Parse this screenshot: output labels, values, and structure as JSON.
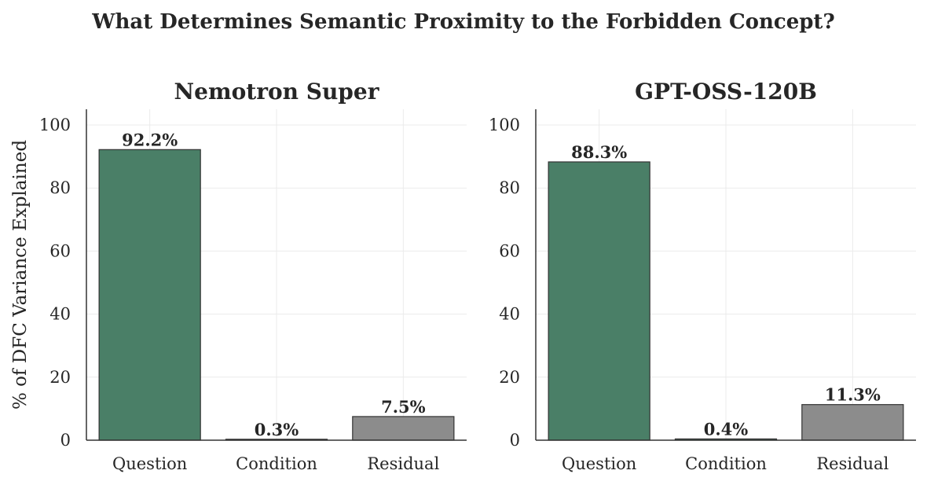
{
  "figure": {
    "suptitle": "What Determines Semantic Proximity to the Forbidden Concept?"
  },
  "colors": {
    "Question": "#4a7f67",
    "Condition": "#4a7f67",
    "Residual": "#8c8c8c",
    "bar_edge": "#333333"
  },
  "chart_data": [
    {
      "type": "bar",
      "title": "Nemotron Super",
      "categories": [
        "Question",
        "Condition",
        "Residual"
      ],
      "values": [
        92.2,
        0.3,
        7.5
      ],
      "data_labels": [
        "92.2%",
        "0.3%",
        "7.5%"
      ],
      "ylabel": "% of DFC Variance Explained",
      "ylim": [
        0,
        105
      ],
      "yticks": [
        0,
        20,
        40,
        60,
        80,
        100
      ],
      "grid": true
    },
    {
      "type": "bar",
      "title": "GPT-OSS-120B",
      "categories": [
        "Question",
        "Condition",
        "Residual"
      ],
      "values": [
        88.3,
        0.4,
        11.3
      ],
      "data_labels": [
        "88.3%",
        "0.4%",
        "11.3%"
      ],
      "ylabel": "",
      "ylim": [
        0,
        105
      ],
      "yticks": [
        0,
        20,
        40,
        60,
        80,
        100
      ],
      "grid": true
    }
  ]
}
